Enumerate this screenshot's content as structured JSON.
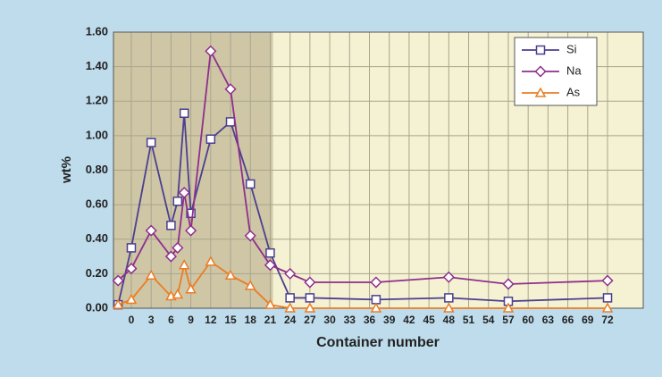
{
  "chart_data": {
    "type": "line",
    "xlabel": "Container number",
    "ylabel": "wt%",
    "x": [
      -2,
      0,
      3,
      6,
      7,
      8,
      9,
      12,
      15,
      18,
      21,
      24,
      27,
      37,
      48,
      57,
      72
    ],
    "series": [
      {
        "name": "Si",
        "color": "#4b3f8f",
        "marker": "square",
        "values": [
          0.02,
          0.35,
          0.96,
          0.48,
          0.62,
          1.13,
          0.55,
          0.98,
          1.08,
          0.72,
          0.32,
          0.06,
          0.06,
          0.05,
          0.06,
          0.04,
          0.06
        ]
      },
      {
        "name": "Na",
        "color": "#8e2f8c",
        "marker": "diamond",
        "values": [
          0.16,
          0.23,
          0.45,
          0.3,
          0.35,
          0.67,
          0.45,
          1.49,
          1.27,
          0.42,
          0.25,
          0.2,
          0.15,
          0.15,
          0.18,
          0.14,
          0.16
        ]
      },
      {
        "name": "As",
        "color": "#ea7d24",
        "marker": "triangle",
        "values": [
          0.02,
          0.05,
          0.19,
          0.07,
          0.08,
          0.25,
          0.11,
          0.27,
          0.19,
          0.13,
          0.02,
          0.0,
          0.0,
          0.0,
          0.0,
          0.0,
          0.0
        ]
      }
    ],
    "xlim": [
      -2.7,
      77.4
    ],
    "ylim": [
      0,
      1.6
    ],
    "xticks": [
      0,
      3,
      6,
      9,
      12,
      15,
      18,
      21,
      24,
      27,
      30,
      33,
      36,
      39,
      42,
      45,
      48,
      51,
      54,
      57,
      60,
      63,
      66,
      69,
      72
    ],
    "yticks": [
      {
        "value": 0,
        "label": "0.00"
      },
      {
        "value": 0.2,
        "label": "0.20"
      },
      {
        "value": 0.4,
        "label": "0.40"
      },
      {
        "value": 0.6,
        "label": "0.60"
      },
      {
        "value": 0.8,
        "label": "0.80"
      },
      {
        "value": 1.0,
        "label": "1.00"
      },
      {
        "value": 1.2,
        "label": "1.20"
      },
      {
        "value": 1.4,
        "label": "1.40"
      },
      {
        "value": 1.6,
        "label": "1.60"
      }
    ],
    "shaded_x_range": [
      -2.7,
      21.4
    ],
    "grid": true,
    "legend": "top-right"
  }
}
